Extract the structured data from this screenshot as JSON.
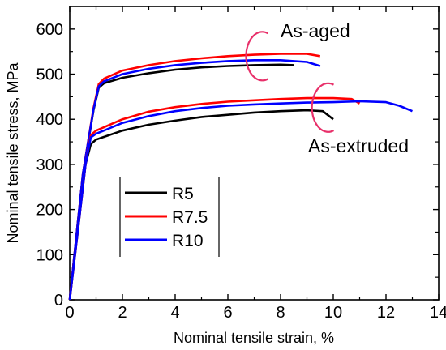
{
  "chart_data": {
    "type": "line",
    "xlabel": "Nominal tensile strain, %",
    "ylabel": "Nominal tensile stress, MPa",
    "xlim": [
      0,
      14
    ],
    "ylim": [
      0,
      650
    ],
    "xticks": [
      0,
      2,
      4,
      6,
      8,
      10,
      12,
      14
    ],
    "yticks": [
      0,
      100,
      200,
      300,
      400,
      500,
      600
    ],
    "grid": false,
    "legend_position": "center-left",
    "annotations": [
      {
        "text": "As-aged",
        "near_x": 8.5,
        "near_y": 620
      },
      {
        "text": "As-extruded",
        "near_x": 11.5,
        "near_y": 340
      }
    ],
    "series": [
      {
        "name": "R5",
        "color": "#000000",
        "group": "As-aged",
        "x": [
          0,
          0.5,
          0.9,
          1.1,
          1.3,
          2,
          3,
          4,
          5,
          6,
          7,
          8,
          8.5
        ],
        "y": [
          0,
          280,
          420,
          470,
          480,
          492,
          502,
          510,
          515,
          518,
          520,
          521,
          520
        ]
      },
      {
        "name": "R7.5",
        "color": "#ff0000",
        "group": "As-aged",
        "x": [
          0,
          0.5,
          0.9,
          1.1,
          1.3,
          2,
          3,
          4,
          5,
          6,
          7,
          8,
          9,
          9.5
        ],
        "y": [
          0,
          280,
          425,
          478,
          490,
          508,
          520,
          529,
          535,
          540,
          543,
          545,
          545,
          540
        ]
      },
      {
        "name": "R10",
        "color": "#0000ff",
        "group": "As-aged",
        "x": [
          0,
          0.5,
          0.9,
          1.1,
          1.3,
          2,
          3,
          4,
          5,
          6,
          7,
          8,
          9,
          9.5
        ],
        "y": [
          0,
          280,
          422,
          473,
          484,
          500,
          512,
          520,
          525,
          529,
          531,
          531,
          527,
          518
        ]
      },
      {
        "name": "R5",
        "color": "#000000",
        "group": "As-extruded",
        "x": [
          0,
          0.3,
          0.6,
          0.8,
          1,
          2,
          3,
          4,
          5,
          6,
          7,
          8,
          9,
          9.6,
          10
        ],
        "y": [
          0,
          150,
          300,
          345,
          355,
          375,
          388,
          397,
          405,
          410,
          415,
          418,
          420,
          418,
          400
        ]
      },
      {
        "name": "R7.5",
        "color": "#ff0000",
        "group": "As-extruded",
        "x": [
          0,
          0.3,
          0.6,
          0.8,
          1,
          2,
          3,
          4,
          5,
          6,
          7,
          8,
          9,
          10,
          10.7,
          11
        ],
        "y": [
          0,
          150,
          300,
          365,
          375,
          400,
          417,
          427,
          434,
          439,
          442,
          445,
          447,
          447,
          445,
          435
        ]
      },
      {
        "name": "R10",
        "color": "#0000ff",
        "group": "As-extruded",
        "x": [
          0,
          0.3,
          0.6,
          0.8,
          1,
          2,
          3,
          4,
          5,
          6,
          7,
          8,
          9,
          10,
          11,
          12,
          12.5,
          13
        ],
        "y": [
          0,
          150,
          300,
          360,
          368,
          392,
          407,
          418,
          425,
          430,
          433,
          435,
          437,
          438,
          440,
          438,
          430,
          418
        ]
      }
    ],
    "legend": [
      {
        "label": "R5",
        "color": "#000000"
      },
      {
        "label": "R7.5",
        "color": "#ff0000"
      },
      {
        "label": "R10",
        "color": "#0000ff"
      }
    ],
    "markers": [
      {
        "shape": "ellipse-arc",
        "color": "#e8306a",
        "cx": 7.3,
        "cy": 540
      },
      {
        "shape": "ellipse-arc",
        "color": "#e8306a",
        "cx": 9.8,
        "cy": 426
      }
    ]
  }
}
